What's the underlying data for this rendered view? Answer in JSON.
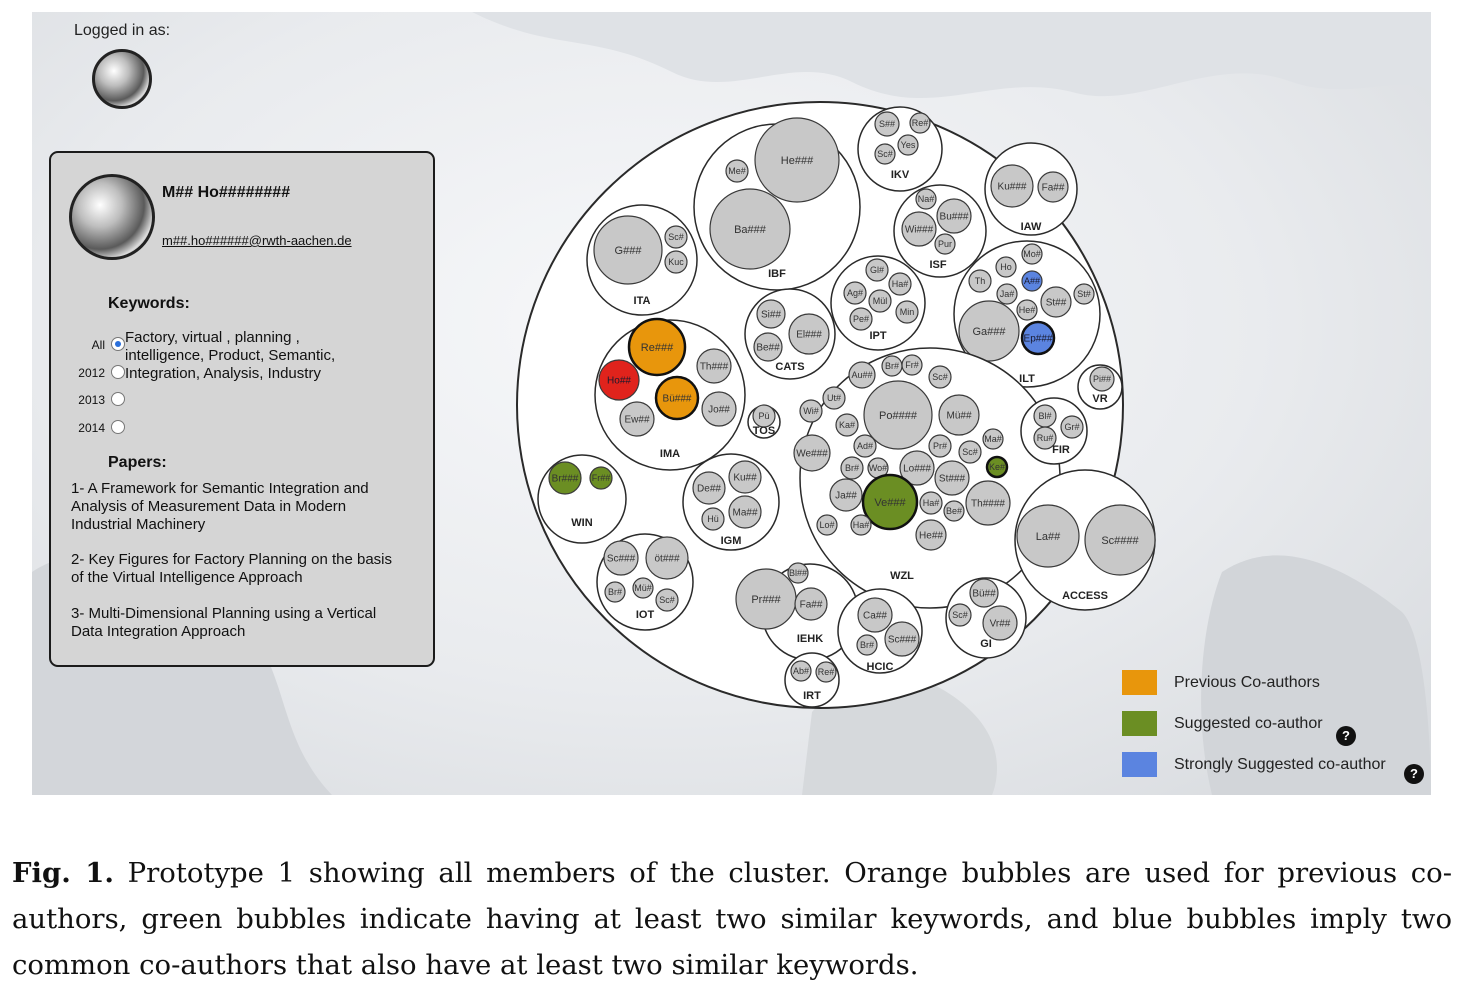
{
  "login": {
    "label": "Logged in as:"
  },
  "profile": {
    "name": "M## Ho########",
    "email": "m##.ho######@rwth-aachen.de",
    "keywords_title": "Keywords:",
    "keyword_options": [
      {
        "label": "All",
        "selected": true
      },
      {
        "label": "2012",
        "selected": false
      },
      {
        "label": "2013",
        "selected": false
      },
      {
        "label": "2014",
        "selected": false
      }
    ],
    "keywords_text": "Factory, virtual , planning , intelligence, Product, Semantic, Integration, Analysis, Industry",
    "papers_title": "Papers:",
    "papers": [
      "1- A Framework for Semantic Integration and Analysis of Measurement Data in Modern Industrial Machinery",
      "2- Key Figures for Factory Planning on the basis of the Virtual  Intelligence Approach",
      "3- Multi-Dimensional  Planning using a Vertical Data Integration Approach"
    ]
  },
  "colors": {
    "previous": "#e8960c",
    "suggested": "#6b8e23",
    "strong": "#5b84e0",
    "self": "#e0231c",
    "member": "#c8c8c8"
  },
  "legend": [
    {
      "label": "Previous Co-authors",
      "color": "#e8960c",
      "help": false
    },
    {
      "label": "Suggested co-author",
      "color": "#6b8e23",
      "help": true
    },
    {
      "label": "Strongly Suggested co-author",
      "color": "#5b84e0",
      "help": true
    }
  ],
  "help_icon": "question-mark-icon",
  "help_glyph": "?",
  "clusters": [
    {
      "label": "IKV",
      "members": [
        {
          "label": "S##",
          "status": "member"
        },
        {
          "label": "Re#",
          "status": "member"
        },
        {
          "label": "Sc#",
          "status": "member"
        },
        {
          "label": "Yes",
          "status": "member"
        }
      ]
    },
    {
      "label": "IBF",
      "members": [
        {
          "label": "He###",
          "status": "member"
        },
        {
          "label": "Me#",
          "status": "member"
        },
        {
          "label": "Ba###",
          "status": "member"
        }
      ]
    },
    {
      "label": "IAW",
      "members": [
        {
          "label": "Ku###",
          "status": "member"
        },
        {
          "label": "Fa##",
          "status": "member"
        }
      ]
    },
    {
      "label": "ITA",
      "members": [
        {
          "label": "G###",
          "status": "member"
        },
        {
          "label": "Sc#",
          "status": "member"
        },
        {
          "label": "Kuc",
          "status": "member"
        }
      ]
    },
    {
      "label": "ISF",
      "members": [
        {
          "label": "Na#",
          "status": "member"
        },
        {
          "label": "Bu###",
          "status": "member"
        },
        {
          "label": "Wi###",
          "status": "member"
        },
        {
          "label": "Pur",
          "status": "member"
        }
      ]
    },
    {
      "label": "ILT",
      "members": [
        {
          "label": "Mo#",
          "status": "member"
        },
        {
          "label": "Th",
          "status": "member"
        },
        {
          "label": "Ho",
          "status": "member"
        },
        {
          "label": "A##",
          "status": "strong"
        },
        {
          "label": "Ja#",
          "status": "member"
        },
        {
          "label": "St##",
          "status": "member"
        },
        {
          "label": "St#",
          "status": "member"
        },
        {
          "label": "He#",
          "status": "member"
        },
        {
          "label": "Ga###",
          "status": "member"
        },
        {
          "label": "Ep###",
          "status": "strong"
        }
      ]
    },
    {
      "label": "IPT",
      "members": [
        {
          "label": "Gl#",
          "status": "member"
        },
        {
          "label": "Ag#",
          "status": "member"
        },
        {
          "label": "Ha#",
          "status": "member"
        },
        {
          "label": "Mül",
          "status": "member"
        },
        {
          "label": "Pe#",
          "status": "member"
        },
        {
          "label": "Min",
          "status": "member"
        }
      ]
    },
    {
      "label": "CATS",
      "members": [
        {
          "label": "Si##",
          "status": "member"
        },
        {
          "label": "El###",
          "status": "member"
        },
        {
          "label": "Be##",
          "status": "member"
        }
      ]
    },
    {
      "label": "IMA",
      "members": [
        {
          "label": "Re###",
          "status": "previous"
        },
        {
          "label": "Th###",
          "status": "member"
        },
        {
          "label": "Ho##",
          "status": "self"
        },
        {
          "label": "Bü###",
          "status": "previous"
        },
        {
          "label": "Jo##",
          "status": "member"
        },
        {
          "label": "Ew##",
          "status": "member"
        }
      ]
    },
    {
      "label": "TOS",
      "members": [
        {
          "label": "Pü",
          "status": "member"
        }
      ]
    },
    {
      "label": "WZL",
      "members": [
        {
          "label": "Br#",
          "status": "member"
        },
        {
          "label": "Fr#",
          "status": "member"
        },
        {
          "label": "Au##",
          "status": "member"
        },
        {
          "label": "Sc#",
          "status": "member"
        },
        {
          "label": "Ut#",
          "status": "member"
        },
        {
          "label": "Po####",
          "status": "member"
        },
        {
          "label": "Mü##",
          "status": "member"
        },
        {
          "label": "Wi#",
          "status": "member"
        },
        {
          "label": "Ka#",
          "status": "member"
        },
        {
          "label": "We###",
          "status": "member"
        },
        {
          "label": "Ad#",
          "status": "member"
        },
        {
          "label": "Pr#",
          "status": "member"
        },
        {
          "label": "Ma#",
          "status": "member"
        },
        {
          "label": "Sc#",
          "status": "member"
        },
        {
          "label": "Br#",
          "status": "member"
        },
        {
          "label": "Wo#",
          "status": "member"
        },
        {
          "label": "Lo###",
          "status": "member"
        },
        {
          "label": "Ke#",
          "status": "suggested"
        },
        {
          "label": "St###",
          "status": "member"
        },
        {
          "label": "Ja##",
          "status": "member"
        },
        {
          "label": "Ve###",
          "status": "suggested"
        },
        {
          "label": "Ha#",
          "status": "member"
        },
        {
          "label": "Be#",
          "status": "member"
        },
        {
          "label": "Th####",
          "status": "member"
        },
        {
          "label": "Lo#",
          "status": "member"
        },
        {
          "label": "Ha#",
          "status": "member"
        },
        {
          "label": "He##",
          "status": "member"
        }
      ]
    },
    {
      "label": "VR",
      "members": [
        {
          "label": "Pi##",
          "status": "member"
        }
      ]
    },
    {
      "label": "FIR",
      "members": [
        {
          "label": "Bl#",
          "status": "member"
        },
        {
          "label": "Gr#",
          "status": "member"
        },
        {
          "label": "Ru#",
          "status": "member"
        }
      ]
    },
    {
      "label": "WIN",
      "members": [
        {
          "label": "Br###",
          "status": "suggested"
        },
        {
          "label": "Fr##",
          "status": "suggested"
        }
      ]
    },
    {
      "label": "IGM",
      "members": [
        {
          "label": "De##",
          "status": "member"
        },
        {
          "label": "Ku##",
          "status": "member"
        },
        {
          "label": "Ma##",
          "status": "member"
        },
        {
          "label": "Hü",
          "status": "member"
        }
      ]
    },
    {
      "label": "ACCESS",
      "members": [
        {
          "label": "La##",
          "status": "member"
        },
        {
          "label": "Sc####",
          "status": "member"
        }
      ]
    },
    {
      "label": "IOT",
      "members": [
        {
          "label": "Sc###",
          "status": "member"
        },
        {
          "label": "öt###",
          "status": "member"
        },
        {
          "label": "Br#",
          "status": "member"
        },
        {
          "label": "Mü#",
          "status": "member"
        },
        {
          "label": "Sc#",
          "status": "member"
        }
      ]
    },
    {
      "label": "IEHK",
      "members": [
        {
          "label": "Bl##",
          "status": "member"
        },
        {
          "label": "Pr###",
          "status": "member"
        },
        {
          "label": "Fa##",
          "status": "member"
        }
      ]
    },
    {
      "label": "HCIC",
      "members": [
        {
          "label": "Ca##",
          "status": "member"
        },
        {
          "label": "Br#",
          "status": "member"
        },
        {
          "label": "Sc###",
          "status": "member"
        }
      ]
    },
    {
      "label": "GI",
      "members": [
        {
          "label": "Bü##",
          "status": "member"
        },
        {
          "label": "Sc#",
          "status": "member"
        },
        {
          "label": "Vr##",
          "status": "member"
        }
      ]
    },
    {
      "label": "IRT",
      "members": [
        {
          "label": "Ab#",
          "status": "member"
        },
        {
          "label": "Re#",
          "status": "member"
        }
      ]
    }
  ],
  "caption": {
    "label": "Fig. 1.",
    "text": " Prototype 1 showing all members of the cluster. Orange bubbles are used for previous co-authors, green bubbles indicate having at least two similar keywords, and blue bubbles imply two common co-authors that also have at least two similar keywords."
  }
}
